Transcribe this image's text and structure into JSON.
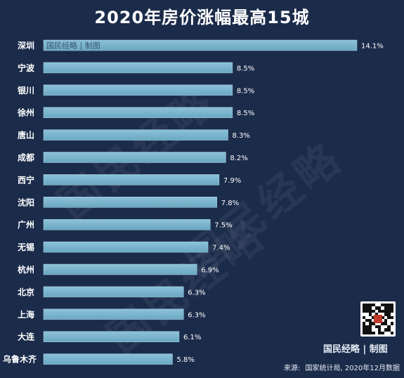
{
  "page": {
    "title": "2020年房价涨幅最高15城",
    "watermark": "国民经略",
    "bar_watermark": "国民经略 | 制图",
    "brand": "国民经略 | 制图",
    "source_label": "来源:",
    "source_text": "国家统计局, 2020年12月数据"
  },
  "colors": {
    "background": "#1b2b4a",
    "bar": "#6aa6c1",
    "bar_top": "#8cc2d9",
    "text": "#ffffff"
  },
  "chart_data": {
    "type": "bar",
    "orientation": "horizontal",
    "categories": [
      "深圳",
      "宁波",
      "银川",
      "徐州",
      "唐山",
      "成都",
      "西宁",
      "沈阳",
      "广州",
      "无锡",
      "杭州",
      "北京",
      "上海",
      "大连",
      "乌鲁木齐"
    ],
    "values": [
      14.1,
      8.5,
      8.5,
      8.5,
      8.3,
      8.2,
      7.9,
      7.8,
      7.5,
      7.4,
      6.9,
      6.3,
      6.3,
      6.1,
      5.8
    ],
    "value_labels": [
      "14.1%",
      "8.5%",
      "8.5%",
      "8.5%",
      "8.3%",
      "8.2%",
      "7.9%",
      "7.8%",
      "7.5%",
      "7.4%",
      "6.9%",
      "6.3%",
      "6.3%",
      "6.1%",
      "5.8%"
    ],
    "title": "2020年房价涨幅最高15城",
    "xlabel": "",
    "ylabel": "",
    "xlim": [
      0,
      14.1
    ],
    "grid": false,
    "legend": "none"
  }
}
